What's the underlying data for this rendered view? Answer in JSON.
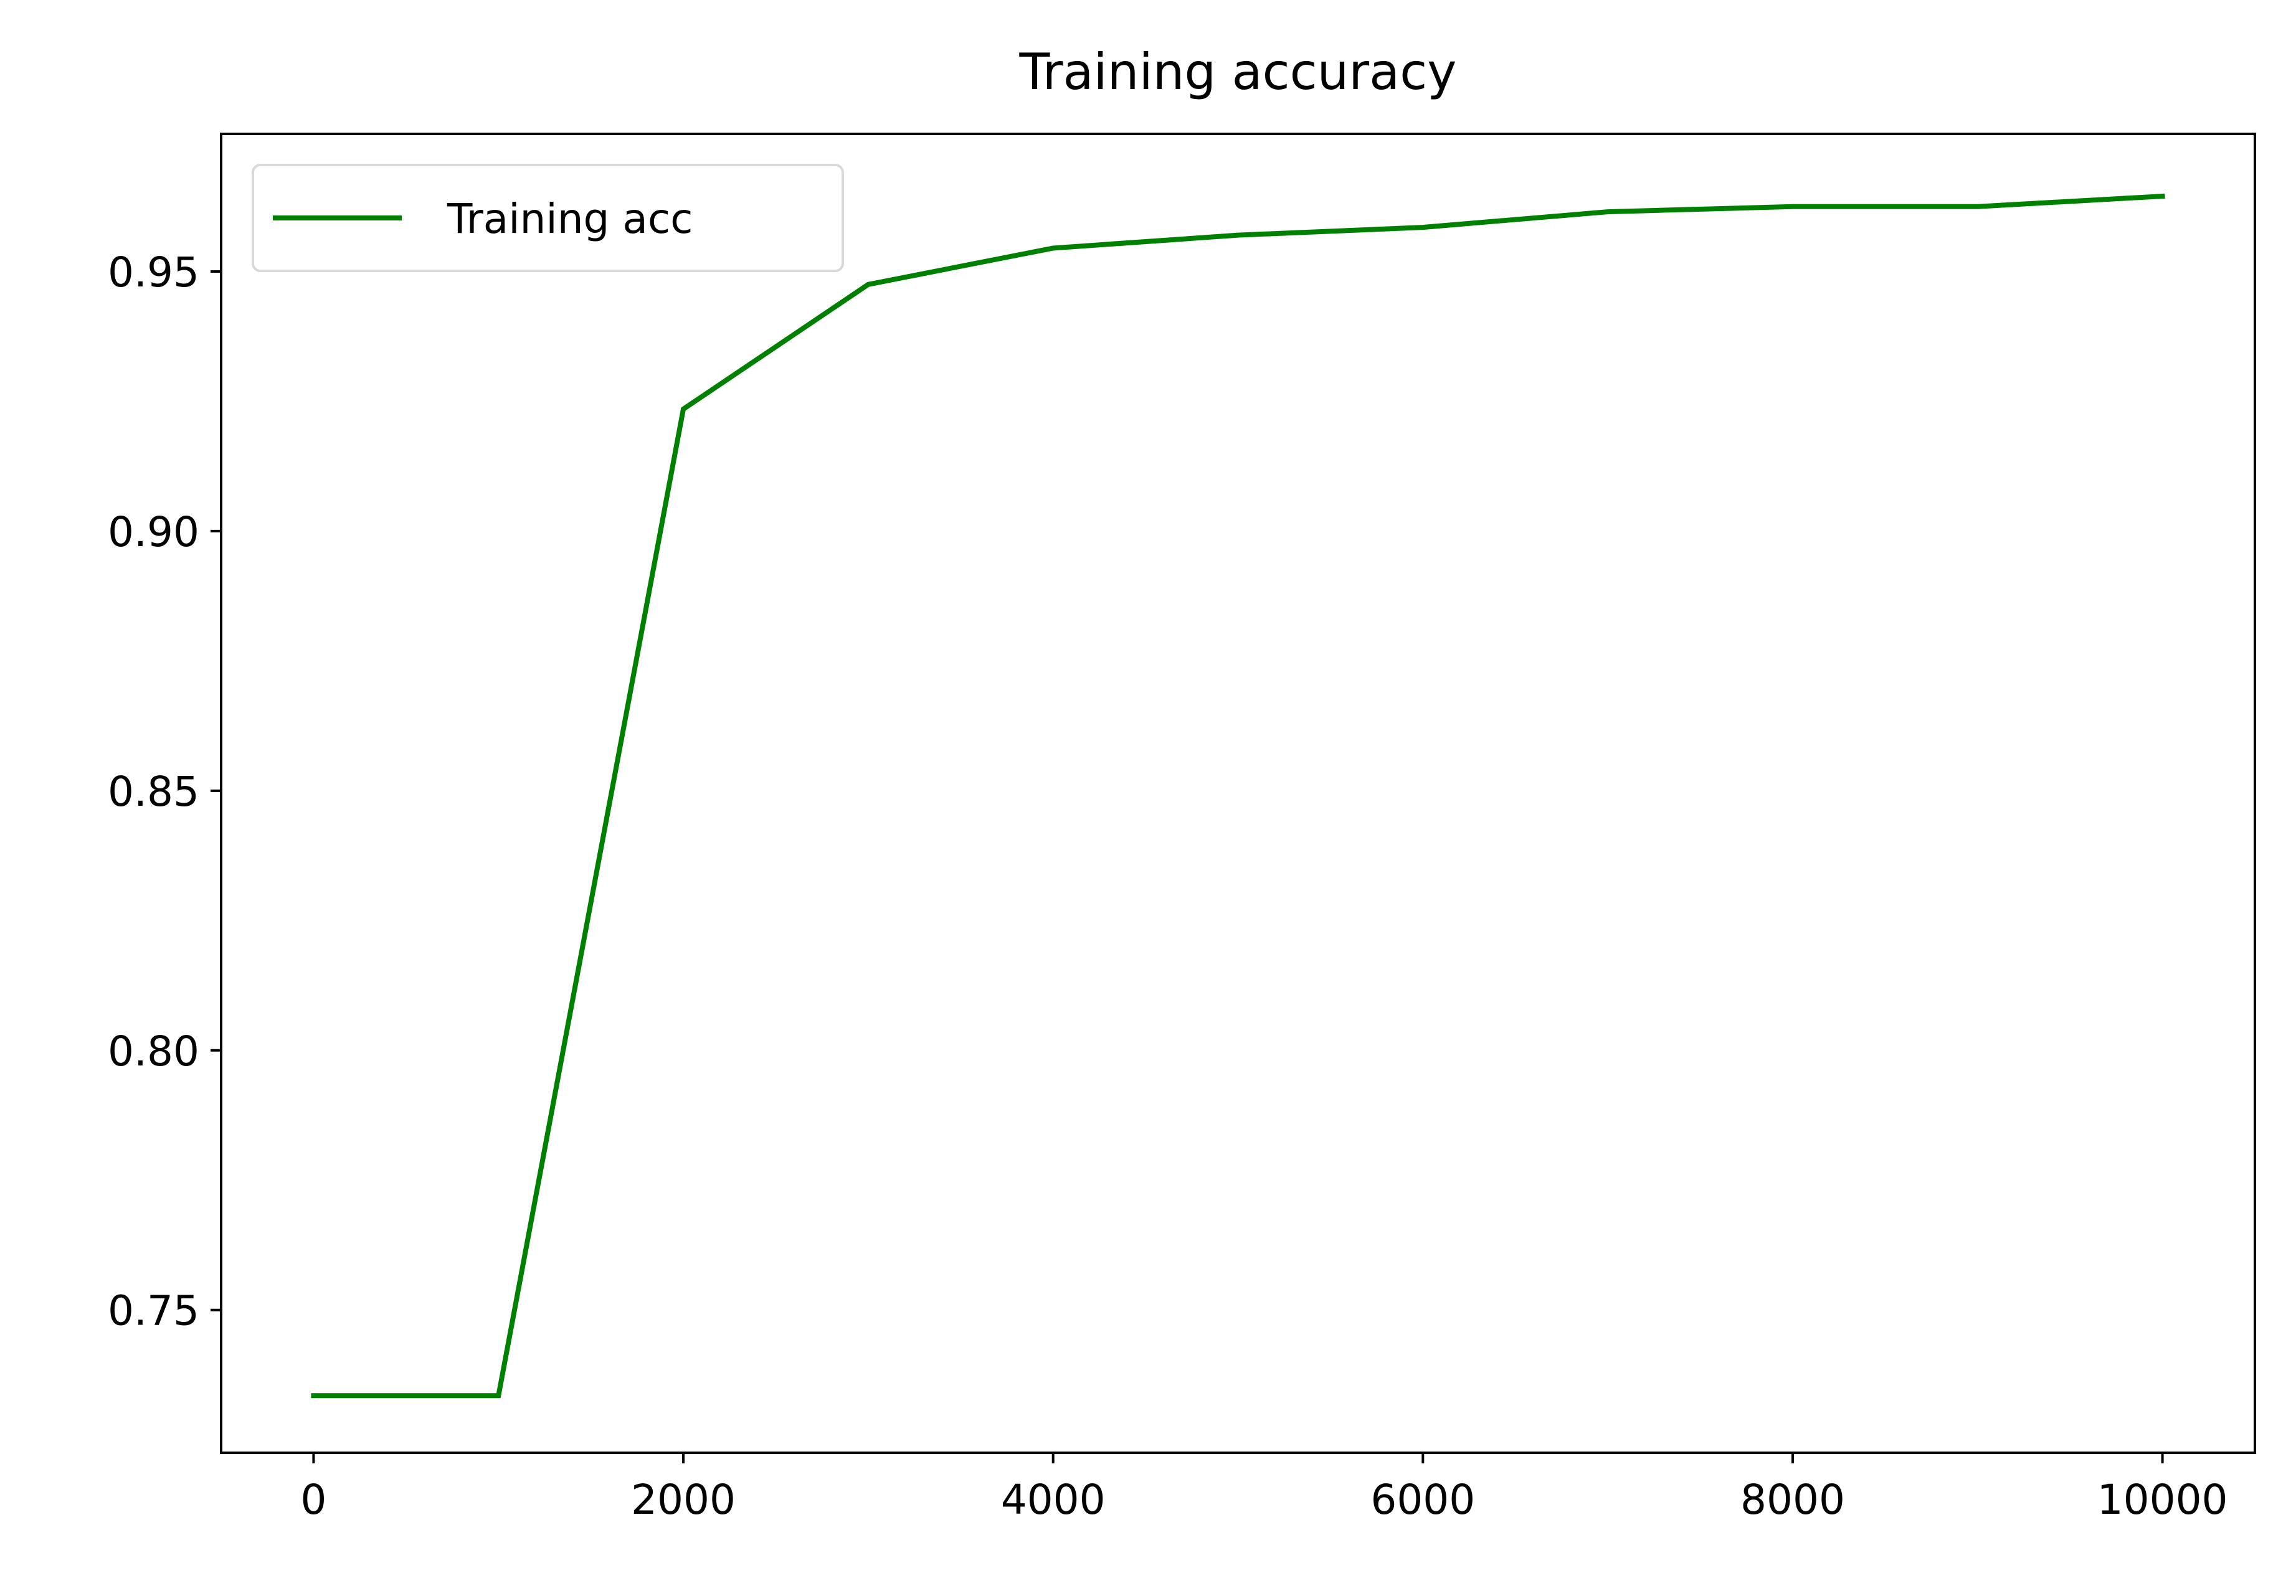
{
  "chart_data": {
    "type": "line",
    "title": "Training accuracy",
    "xlabel": "",
    "ylabel": "",
    "xlim": [
      -500,
      10500
    ],
    "ylim": [
      0.7225,
      0.9765
    ],
    "xticks": [
      0,
      2000,
      4000,
      6000,
      8000,
      10000
    ],
    "xtick_labels": [
      "0",
      "2000",
      "4000",
      "6000",
      "8000",
      "10000"
    ],
    "yticks": [
      0.75,
      0.8,
      0.85,
      0.9,
      0.95
    ],
    "ytick_labels": [
      "0.75",
      "0.80",
      "0.85",
      "0.90",
      "0.95"
    ],
    "grid": false,
    "legend_position": "upper-left",
    "series": [
      {
        "name": "Training acc",
        "color": "#008000",
        "x": [
          0,
          1000,
          2000,
          3000,
          4000,
          5000,
          6000,
          7000,
          8000,
          9000,
          10000
        ],
        "y": [
          0.7335,
          0.7335,
          0.9235,
          0.9475,
          0.9545,
          0.957,
          0.9585,
          0.9615,
          0.9625,
          0.9625,
          0.9645
        ]
      }
    ]
  }
}
